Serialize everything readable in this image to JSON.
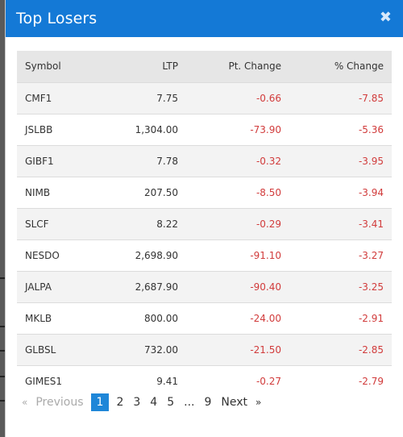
{
  "modal": {
    "title": "Top Losers",
    "close_glyph": "✖",
    "header_color": "#1479d6"
  },
  "table": {
    "columns": [
      "Symbol",
      "LTP",
      "Pt. Change",
      "% Change"
    ],
    "rows": [
      {
        "symbol": "CMF1",
        "ltp": "7.75",
        "pt_change": "-0.66",
        "pct_change": "-7.85"
      },
      {
        "symbol": "JSLBB",
        "ltp": "1,304.00",
        "pt_change": "-73.90",
        "pct_change": "-5.36"
      },
      {
        "symbol": "GIBF1",
        "ltp": "7.78",
        "pt_change": "-0.32",
        "pct_change": "-3.95"
      },
      {
        "symbol": "NIMB",
        "ltp": "207.50",
        "pt_change": "-8.50",
        "pct_change": "-3.94"
      },
      {
        "symbol": "SLCF",
        "ltp": "8.22",
        "pt_change": "-0.29",
        "pct_change": "-3.41"
      },
      {
        "symbol": "NESDO",
        "ltp": "2,698.90",
        "pt_change": "-91.10",
        "pct_change": "-3.27"
      },
      {
        "symbol": "JALPA",
        "ltp": "2,687.90",
        "pt_change": "-90.40",
        "pct_change": "-3.25"
      },
      {
        "symbol": "MKLB",
        "ltp": "800.00",
        "pt_change": "-24.00",
        "pct_change": "-2.91"
      },
      {
        "symbol": "GLBSL",
        "ltp": "732.00",
        "pt_change": "-21.50",
        "pct_change": "-2.85"
      },
      {
        "symbol": "GIMES1",
        "ltp": "9.41",
        "pt_change": "-0.27",
        "pct_change": "-2.79"
      }
    ],
    "negative_color": "#d13b3b"
  },
  "pagination": {
    "prev_arrow": "«",
    "prev_label": "Previous",
    "pages": [
      "1",
      "2",
      "3",
      "4",
      "5"
    ],
    "ellipsis": "...",
    "last_page": "9",
    "next_label": "Next",
    "next_arrow": "»",
    "current_page": "1",
    "active_color": "#1e86d8"
  }
}
